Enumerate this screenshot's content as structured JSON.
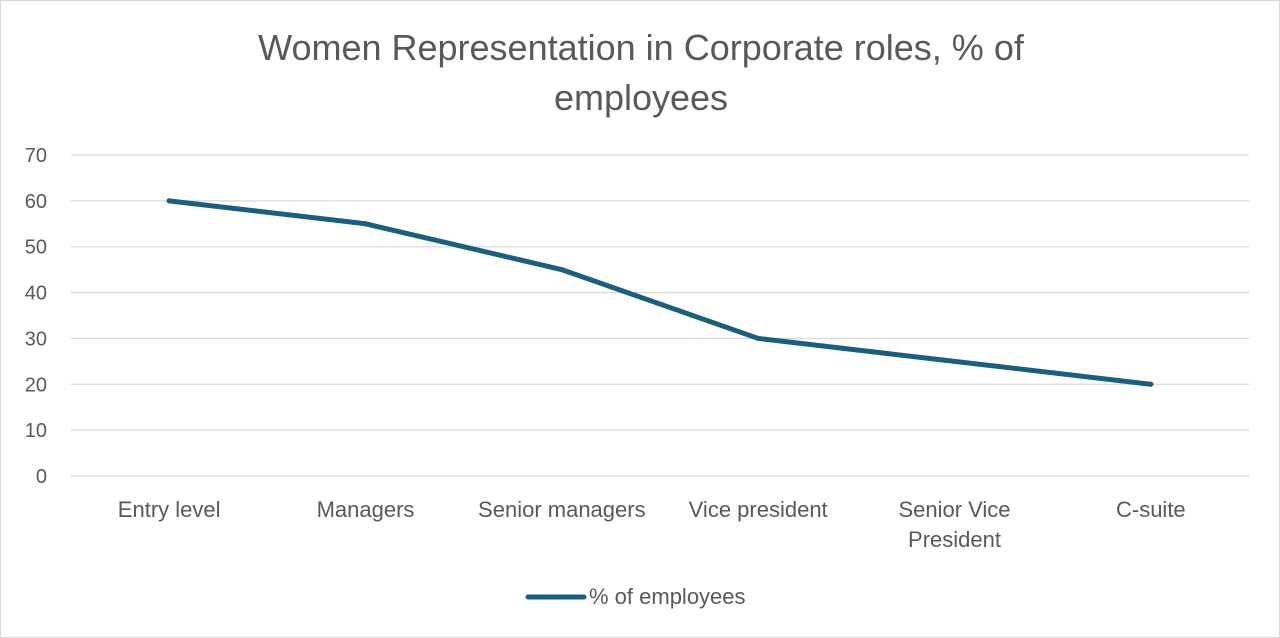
{
  "colors": {
    "series": "#1b5f7e",
    "gridline": "#d9d9d9",
    "text": "#595959"
  },
  "chart_data": {
    "type": "line",
    "title": "Women Representation in Corporate roles, % of employees",
    "categories": [
      "Entry level",
      "Managers",
      "Senior managers",
      "Vice president",
      "Senior Vice President",
      "C-suite"
    ],
    "series": [
      {
        "name": "% of employees",
        "values": [
          60,
          55,
          45,
          30,
          25,
          20
        ]
      }
    ],
    "y_ticks": [
      "0",
      "10",
      "20",
      "30",
      "40",
      "50",
      "60",
      "70"
    ],
    "ylim": [
      0,
      70
    ],
    "grid": true,
    "legend": "bottom"
  }
}
